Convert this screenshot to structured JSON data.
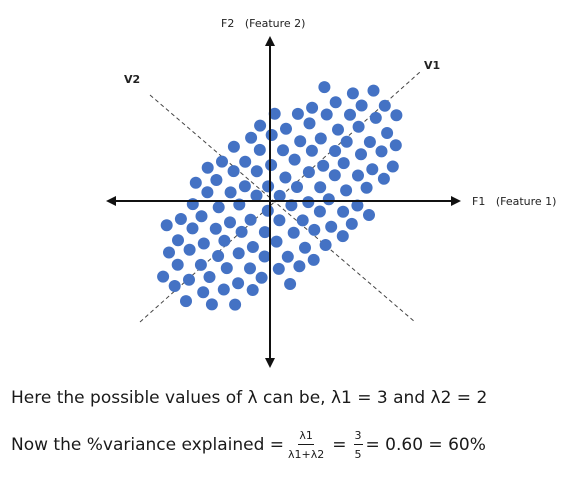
{
  "axes": {
    "f2_label": "F2   (Feature 2)",
    "f1_label": "F1   (Feature 1)",
    "v1_label": "V1",
    "v2_label": "V2"
  },
  "colors": {
    "points": "#4472C4",
    "axes": "#111111",
    "dashed": "#444444"
  },
  "text": {
    "line1": "Here the possible values of λ can be, λ1 = 3 and λ2 = 2",
    "line2_prefix": "Now the %variance explained =",
    "frac1_num": "λ1",
    "frac1_den": "λ1+λ2",
    "eq": "=",
    "frac2_num": "3",
    "frac2_den": "5",
    "result": "= 0.60 = 60%"
  }
}
